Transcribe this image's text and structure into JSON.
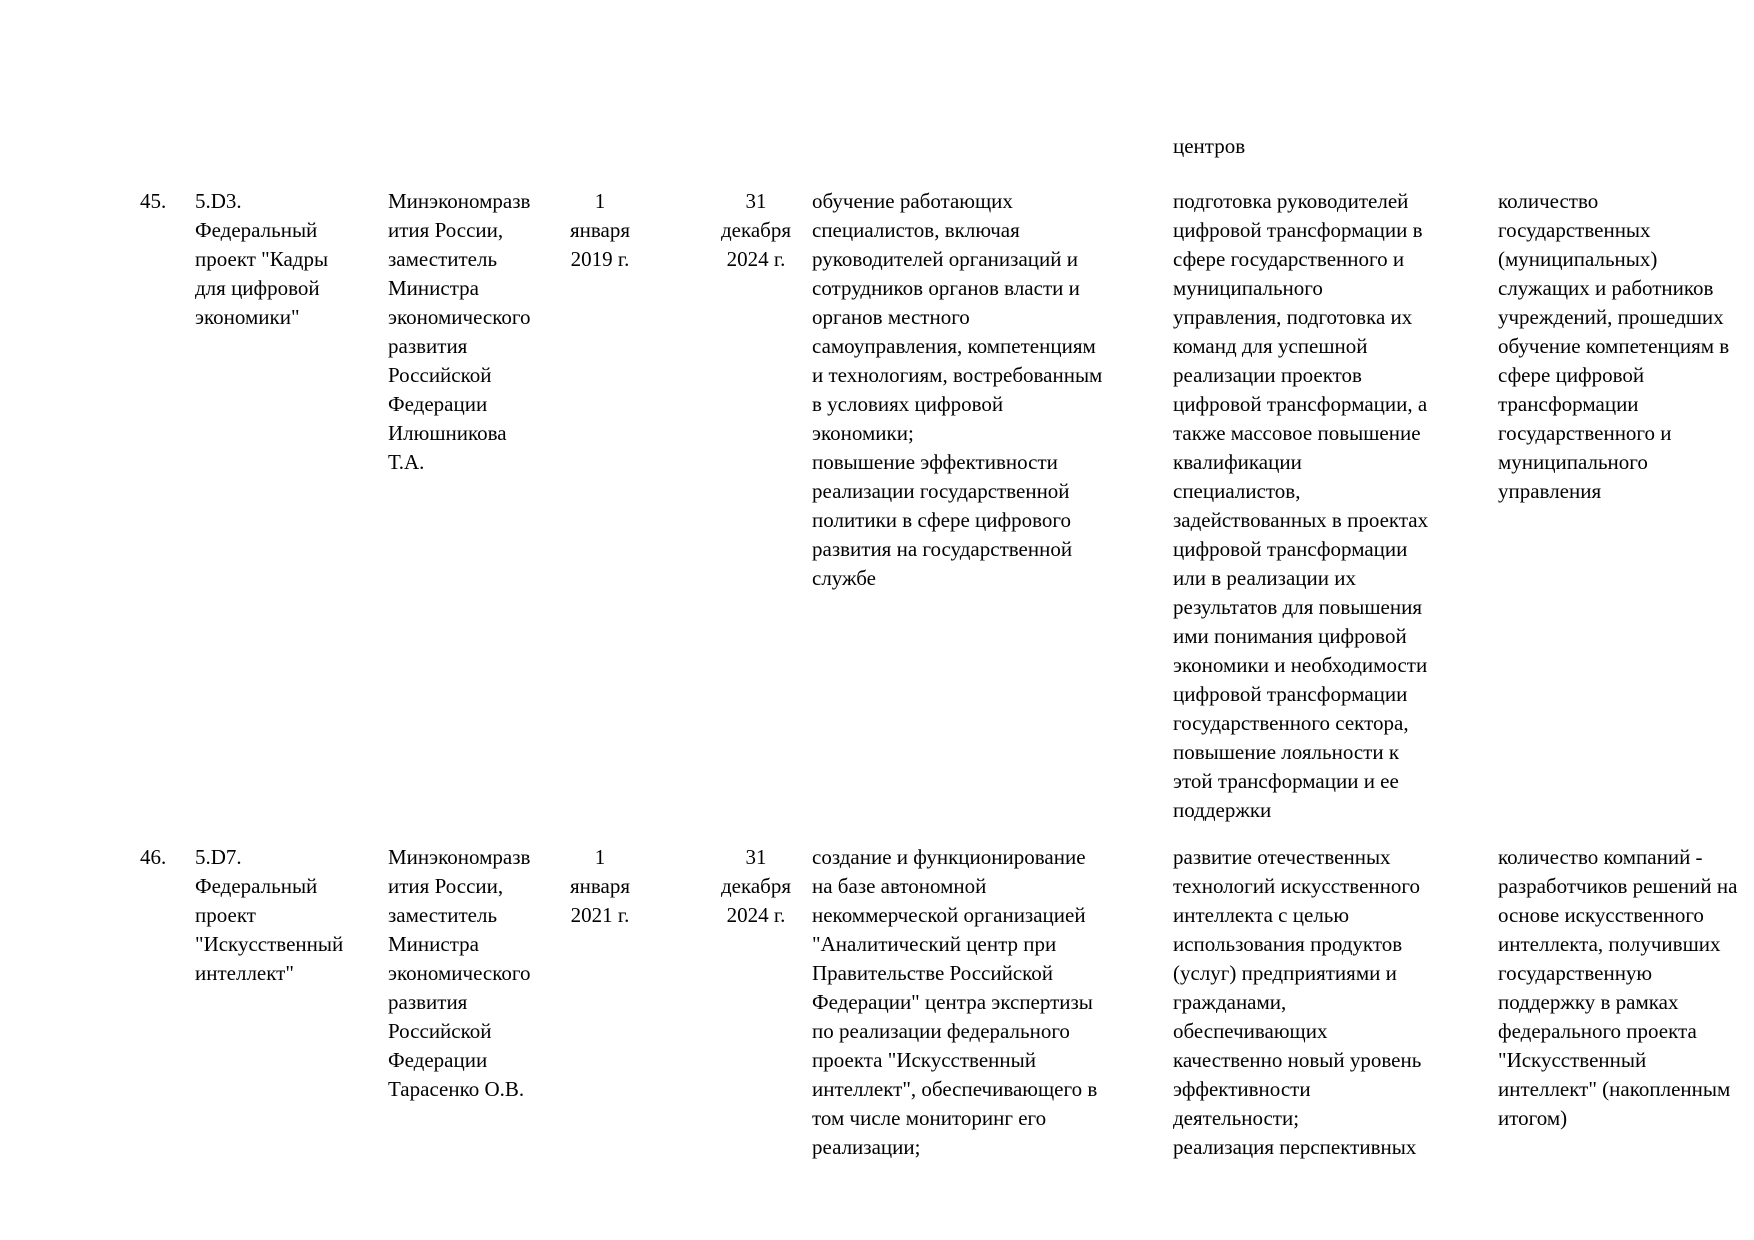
{
  "page": {
    "background_color": "#ffffff",
    "text_color": "#000000"
  },
  "carryover": {
    "text": "центров"
  },
  "rows": [
    {
      "num": "45.",
      "project": "5.D3.\nФедеральный\nпроект \"Кадры\nдля цифровой\nэкономики\"",
      "agency": "Минэкономразв\nития России,\nзаместитель\nМинистра\nэкономического\nразвития\nРоссийской\nФедерации\nИлюшникова\nТ.А.",
      "date_start": "1\nянваря\n2019 г.",
      "date_end": "31\nдекабря\n2024 г.",
      "tasks": "обучение работающих\nспециалистов, включая\nруководителей организаций и\nсотрудников органов власти и\nорганов местного\nсамоуправления, компетенциям\nи технологиям, востребованным\nв условиях цифровой\nэкономики;\nповышение эффективности\nреализации государственной\nполитики в сфере цифрового\nразвития на государственной\nслужбе",
      "results": "подготовка руководителей\nцифровой трансформации в\nсфере государственного и\nмуниципального\nуправления, подготовка их\nкоманд для успешной\nреализации проектов\nцифровой трансформации, а\nтакже массовое повышение\nквалификации\nспециалистов,\nзадействованных в проектах\nцифровой трансформации\nили в реализации их\nрезультатов для повышения\nими понимания цифровой\nэкономики и необходимости\nцифровой трансформации\nгосударственного сектора,\nповышение лояльности к\nэтой трансформации и ее\nподдержки",
      "indicator": "количество\nгосударственных\n(муниципальных)\nслужащих и работников\nучреждений, прошедших\nобучение компетенциям в\nсфере цифровой\nтрансформации\nгосударственного и\nмуниципального\nуправления"
    },
    {
      "num": "46.",
      "project": "5.D7.\nФедеральный\nпроект\n\"Искусственный\nинтеллект\"",
      "agency": "Минэкономразв\nития России,\nзаместитель\nМинистра\nэкономического\nразвития\nРоссийской\nФедерации\nТарасенко О.В.",
      "date_start": "1\nянваря\n2021 г.",
      "date_end": "31\nдекабря\n2024 г.",
      "tasks": "создание и функционирование\nна базе автономной\nнекоммерческой организацией\n\"Аналитический центр при\nПравительстве Российской\nФедерации\" центра экспертизы\nпо реализации федерального\nпроекта \"Искусственный\nинтеллект\", обеспечивающего в\nтом числе мониторинг его\nреализации;",
      "results": "развитие отечественных\nтехнологий искусственного\nинтеллекта с целью\nиспользования продуктов\n(услуг) предприятиями и\nгражданами,\nобеспечивающих\nкачественно новый уровень\nэффективности\nдеятельности;\nреализация перспективных",
      "indicator": "количество компаний -\nразработчиков решений на\nоснове искусственного\nинтеллекта, получивших\nгосударственную\nподдержку в рамках\nфедерального проекта\n\"Искусственный\nинтеллект\" (накопленным\nитогом)"
    }
  ]
}
